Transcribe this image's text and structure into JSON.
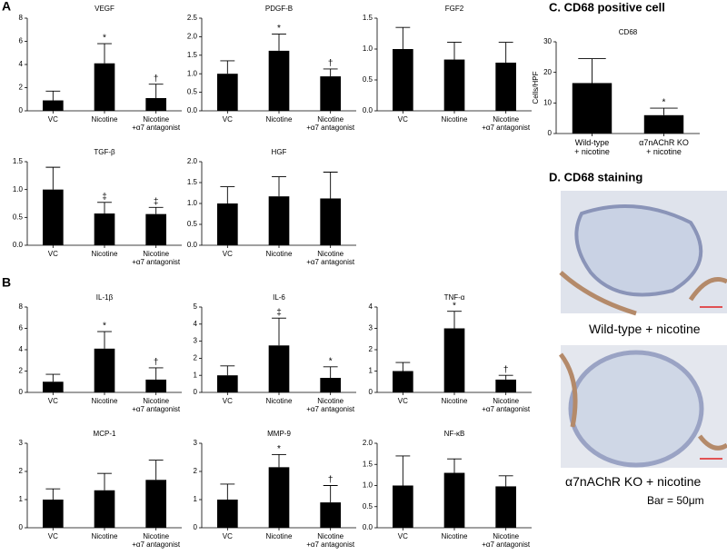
{
  "panels": {
    "a": "A",
    "b": "B",
    "c": "C. CD68 positive cell",
    "d": "D. CD68 staining"
  },
  "images": [
    {
      "caption": "Wild-type + nicotine"
    },
    {
      "caption": "α7nAChR KO + nicotine",
      "note": "Bar = 50μm"
    }
  ],
  "chart_data": [
    {
      "type": "bar",
      "title": "VEGF",
      "categories": [
        "VC",
        "Nicotine",
        "Nicotine\n+α7 antagonist"
      ],
      "values": [
        0.9,
        4.1,
        1.1
      ],
      "errors": [
        0.8,
        1.7,
        1.2
      ],
      "annotations": [
        null,
        "*",
        "†"
      ],
      "color": "#000000",
      "ylim": [
        0,
        8
      ],
      "yticks": [
        0,
        2,
        4,
        6,
        8
      ]
    },
    {
      "type": "bar",
      "title": "PDGF-B",
      "categories": [
        "VC",
        "Nicotine",
        "Nicotine\n+α7 antagonist"
      ],
      "values": [
        1.0,
        1.62,
        0.93
      ],
      "errors": [
        0.35,
        0.45,
        0.2
      ],
      "annotations": [
        null,
        "*",
        "†"
      ],
      "color": "#000000",
      "ylim": [
        0,
        2.5
      ],
      "yticks": [
        {
          "value": 0,
          "label": "0.0"
        },
        {
          "value": 0.5,
          "label": "0.5"
        },
        {
          "value": 1,
          "label": "1.0"
        },
        {
          "value": 1.5,
          "label": "1.5"
        },
        {
          "value": 2,
          "label": "2.0"
        },
        {
          "value": 2.5,
          "label": "2.5"
        }
      ]
    },
    {
      "type": "bar",
      "title": "FGF2",
      "categories": [
        "VC",
        "Nicotine",
        "Nicotine\n+α7 antagonist"
      ],
      "values": [
        1.0,
        0.83,
        0.78
      ],
      "errors": [
        0.35,
        0.28,
        0.33
      ],
      "annotations": [
        null,
        null,
        null
      ],
      "color": "#000000",
      "ylim": [
        0,
        1.5
      ],
      "yticks": [
        {
          "value": 0,
          "label": "0.0"
        },
        {
          "value": 0.5,
          "label": "0.5"
        },
        {
          "value": 1,
          "label": "1.0"
        },
        {
          "value": 1.5,
          "label": "1.5"
        }
      ]
    },
    {
      "type": "bar",
      "title": "TGF-β",
      "categories": [
        "VC",
        "Nicotine",
        "Nicotine\n+α7 antagonist"
      ],
      "values": [
        1.0,
        0.57,
        0.56
      ],
      "errors": [
        0.4,
        0.2,
        0.12
      ],
      "annotations": [
        null,
        "‡",
        "‡"
      ],
      "color": "#000000",
      "ylim": [
        0,
        1.5
      ],
      "yticks": [
        {
          "value": 0,
          "label": "0.0"
        },
        {
          "value": 0.5,
          "label": "0.5"
        },
        {
          "value": 1,
          "label": "1.0"
        },
        {
          "value": 1.5,
          "label": "1.5"
        }
      ]
    },
    {
      "type": "bar",
      "title": "HGF",
      "categories": [
        "VC",
        "Nicotine",
        "Nicotine\n+α7 antagonist"
      ],
      "values": [
        1.0,
        1.17,
        1.12
      ],
      "errors": [
        0.4,
        0.47,
        0.63
      ],
      "annotations": [
        null,
        null,
        null
      ],
      "color": "#000000",
      "ylim": [
        0,
        2
      ],
      "yticks": [
        {
          "value": 0,
          "label": "0.0"
        },
        {
          "value": 0.5,
          "label": "0.5"
        },
        {
          "value": 1,
          "label": "1.0"
        },
        {
          "value": 1.5,
          "label": "1.5"
        },
        {
          "value": 2,
          "label": "2.0"
        }
      ]
    },
    {
      "type": "bar",
      "title": "IL-1β",
      "categories": [
        "VC",
        "Nicotine",
        "Nicotine\n+α7 antagonist"
      ],
      "values": [
        1.0,
        4.1,
        1.2
      ],
      "errors": [
        0.7,
        1.6,
        1.1
      ],
      "annotations": [
        null,
        "*",
        "†"
      ],
      "color": "#000000",
      "ylim": [
        0,
        8
      ],
      "yticks": [
        0,
        2,
        4,
        6,
        8
      ]
    },
    {
      "type": "bar",
      "title": "IL-6",
      "categories": [
        "VC",
        "Nicotine",
        "Nicotine\n+α7 antagonist"
      ],
      "values": [
        1.0,
        2.75,
        0.85
      ],
      "errors": [
        0.55,
        1.6,
        0.65
      ],
      "annotations": [
        null,
        "‡",
        "*"
      ],
      "color": "#000000",
      "ylim": [
        0,
        5
      ],
      "yticks": [
        0,
        1,
        2,
        3,
        4,
        5
      ]
    },
    {
      "type": "bar",
      "title": "TNF-α",
      "categories": [
        "VC",
        "Nicotine",
        "Nicotine\n+α7 antagonist"
      ],
      "values": [
        1.0,
        3.0,
        0.6
      ],
      "errors": [
        0.4,
        0.8,
        0.2
      ],
      "annotations": [
        null,
        "*",
        "†"
      ],
      "color": "#000000",
      "ylim": [
        0,
        4
      ],
      "yticks": [
        0,
        1,
        2,
        3,
        4
      ]
    },
    {
      "type": "bar",
      "title": "MCP-1",
      "categories": [
        "VC",
        "Nicotine",
        "Nicotine\n+α7 antagonist"
      ],
      "values": [
        1.0,
        1.33,
        1.7
      ],
      "errors": [
        0.38,
        0.6,
        0.7
      ],
      "annotations": [
        null,
        null,
        null
      ],
      "color": "#000000",
      "ylim": [
        0,
        3
      ],
      "yticks": [
        0,
        1,
        2,
        3
      ]
    },
    {
      "type": "bar",
      "title": "MMP-9",
      "categories": [
        "VC",
        "Nicotine",
        "Nicotine\n+α7 antagonist"
      ],
      "values": [
        1.0,
        2.15,
        0.9
      ],
      "errors": [
        0.55,
        0.45,
        0.6
      ],
      "annotations": [
        null,
        "*",
        "†"
      ],
      "color": "#000000",
      "ylim": [
        0,
        3
      ],
      "yticks": [
        0,
        1,
        2,
        3
      ]
    },
    {
      "type": "bar",
      "title": "NF-κB",
      "categories": [
        "VC",
        "Nicotine",
        "Nicotine\n+α7 antagonist"
      ],
      "values": [
        1.0,
        1.3,
        0.98
      ],
      "errors": [
        0.7,
        0.33,
        0.25
      ],
      "annotations": [
        null,
        null,
        null
      ],
      "color": "#000000",
      "ylim": [
        0,
        2
      ],
      "yticks": [
        {
          "value": 0,
          "label": "0.0"
        },
        {
          "value": 0.5,
          "label": "0.5"
        },
        {
          "value": 1,
          "label": "1.0"
        },
        {
          "value": 1.5,
          "label": "1.5"
        },
        {
          "value": 2,
          "label": "2.0"
        }
      ]
    },
    {
      "type": "bar",
      "title": "CD68",
      "y_label": "Cells/HPF",
      "categories": [
        "Wild-type\n+ nicotine",
        "α7nAChR KO\n+ nicotine"
      ],
      "values": [
        16.5,
        6.0
      ],
      "errors": [
        8,
        2.3
      ],
      "annotations": [
        null,
        "*"
      ],
      "color": "#000000",
      "ylim": [
        0,
        30
      ],
      "yticks": [
        0,
        10,
        20,
        30
      ]
    }
  ]
}
